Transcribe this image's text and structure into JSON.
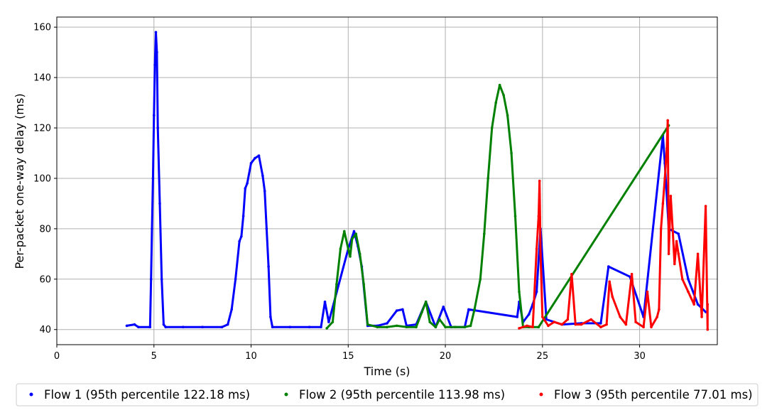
{
  "chart_data": {
    "type": "scatter",
    "xlabel": "Time (s)",
    "ylabel": "Per-packet one-way delay (ms)",
    "xlim": [
      0,
      34
    ],
    "ylim": [
      34,
      164
    ],
    "xticks": [
      0,
      5,
      10,
      15,
      20,
      25,
      30
    ],
    "yticks": [
      40,
      60,
      80,
      100,
      120,
      140,
      160
    ],
    "grid": true,
    "legend_position": "bottom",
    "series": [
      {
        "name": "Flow 1 (95th percentile 122.18 ms)",
        "color": "#0000ff",
        "points": [
          [
            3.6,
            41.5
          ],
          [
            4.0,
            42.0
          ],
          [
            4.2,
            41.0
          ],
          [
            4.8,
            41.0
          ],
          [
            4.85,
            60
          ],
          [
            4.9,
            80
          ],
          [
            4.95,
            100
          ],
          [
            5.0,
            125
          ],
          [
            5.05,
            145
          ],
          [
            5.1,
            158
          ],
          [
            5.15,
            150
          ],
          [
            5.2,
            120
          ],
          [
            5.3,
            90
          ],
          [
            5.4,
            60
          ],
          [
            5.5,
            42
          ],
          [
            5.6,
            41
          ],
          [
            6.5,
            41
          ],
          [
            7.5,
            41
          ],
          [
            8.5,
            41
          ],
          [
            8.8,
            42
          ],
          [
            9.0,
            48
          ],
          [
            9.2,
            60
          ],
          [
            9.4,
            75
          ],
          [
            9.5,
            77
          ],
          [
            9.6,
            85
          ],
          [
            9.7,
            96
          ],
          [
            9.8,
            98
          ],
          [
            10.0,
            106
          ],
          [
            10.2,
            108
          ],
          [
            10.4,
            109
          ],
          [
            10.6,
            101
          ],
          [
            10.7,
            95
          ],
          [
            10.8,
            80
          ],
          [
            10.9,
            65
          ],
          [
            11.0,
            45
          ],
          [
            11.1,
            41
          ],
          [
            12.0,
            41
          ],
          [
            13.0,
            41
          ],
          [
            13.6,
            41
          ],
          [
            13.8,
            51
          ],
          [
            14.0,
            43
          ],
          [
            15.0,
            72
          ],
          [
            15.3,
            79
          ],
          [
            15.5,
            73
          ],
          [
            15.7,
            65
          ],
          [
            16.0,
            41.5
          ],
          [
            16.5,
            41.5
          ],
          [
            17.0,
            42.5
          ],
          [
            17.5,
            47.5
          ],
          [
            17.8,
            48
          ],
          [
            18.0,
            41.5
          ],
          [
            18.5,
            42
          ],
          [
            19.0,
            51
          ],
          [
            19.5,
            41
          ],
          [
            19.9,
            49
          ],
          [
            20.3,
            41
          ],
          [
            21.0,
            41
          ],
          [
            21.2,
            48
          ],
          [
            23.7,
            45
          ],
          [
            23.8,
            51
          ],
          [
            24.0,
            43
          ],
          [
            24.3,
            46
          ],
          [
            24.5,
            50
          ],
          [
            24.7,
            55
          ],
          [
            24.9,
            80
          ],
          [
            25.2,
            44
          ],
          [
            26.0,
            42
          ],
          [
            27.0,
            42.5
          ],
          [
            28.0,
            42.5
          ],
          [
            28.4,
            65
          ],
          [
            29.5,
            61
          ],
          [
            30.2,
            45
          ],
          [
            31.2,
            117
          ],
          [
            31.3,
            106
          ],
          [
            31.5,
            80
          ],
          [
            32.0,
            78
          ],
          [
            32.5,
            60
          ],
          [
            33.0,
            50
          ],
          [
            33.4,
            47
          ]
        ]
      },
      {
        "name": "Flow 2 (95th percentile 113.98 ms)",
        "color": "#008000",
        "points": [
          [
            13.9,
            40.5
          ],
          [
            14.2,
            43
          ],
          [
            14.4,
            58
          ],
          [
            14.6,
            72
          ],
          [
            14.8,
            79
          ],
          [
            15.0,
            72
          ],
          [
            15.1,
            69
          ],
          [
            15.2,
            76
          ],
          [
            15.4,
            78
          ],
          [
            15.6,
            70
          ],
          [
            15.8,
            58
          ],
          [
            16.0,
            42
          ],
          [
            16.5,
            41
          ],
          [
            17.0,
            41
          ],
          [
            17.5,
            41.5
          ],
          [
            18.0,
            41
          ],
          [
            18.5,
            41
          ],
          [
            18.8,
            47
          ],
          [
            19.0,
            51
          ],
          [
            19.2,
            43
          ],
          [
            19.5,
            41
          ],
          [
            19.7,
            44
          ],
          [
            20.0,
            41
          ],
          [
            20.5,
            41
          ],
          [
            21.0,
            41
          ],
          [
            21.3,
            41.5
          ],
          [
            21.5,
            48
          ],
          [
            21.8,
            60
          ],
          [
            22.0,
            78
          ],
          [
            22.2,
            100
          ],
          [
            22.4,
            120
          ],
          [
            22.6,
            130
          ],
          [
            22.8,
            137
          ],
          [
            23.0,
            133
          ],
          [
            23.2,
            125
          ],
          [
            23.4,
            110
          ],
          [
            23.6,
            85
          ],
          [
            23.8,
            55
          ],
          [
            24.0,
            41
          ],
          [
            24.3,
            41
          ],
          [
            24.8,
            41
          ],
          [
            31.5,
            121
          ]
        ]
      },
      {
        "name": "Flow 3 (95th percentile 77.01 ms)",
        "color": "#ff0000",
        "points": [
          [
            23.8,
            40.5
          ],
          [
            24.2,
            41.5
          ],
          [
            24.5,
            41
          ],
          [
            24.7,
            72
          ],
          [
            24.8,
            85
          ],
          [
            24.85,
            99
          ],
          [
            24.9,
            70
          ],
          [
            25.0,
            45
          ],
          [
            25.3,
            41.5
          ],
          [
            25.6,
            43
          ],
          [
            26.0,
            42
          ],
          [
            26.3,
            44
          ],
          [
            26.5,
            62
          ],
          [
            26.7,
            42
          ],
          [
            27.0,
            42
          ],
          [
            27.5,
            44
          ],
          [
            28.0,
            41
          ],
          [
            28.3,
            42
          ],
          [
            28.45,
            59
          ],
          [
            28.6,
            53
          ],
          [
            29.0,
            45
          ],
          [
            29.3,
            42
          ],
          [
            29.6,
            62
          ],
          [
            29.8,
            43
          ],
          [
            30.2,
            41
          ],
          [
            30.4,
            55
          ],
          [
            30.6,
            41
          ],
          [
            30.9,
            45
          ],
          [
            31.0,
            48
          ],
          [
            31.1,
            80
          ],
          [
            31.2,
            90
          ],
          [
            31.3,
            100
          ],
          [
            31.4,
            112
          ],
          [
            31.45,
            123
          ],
          [
            31.5,
            70
          ],
          [
            31.6,
            93
          ],
          [
            31.7,
            80
          ],
          [
            31.8,
            66
          ],
          [
            31.9,
            75
          ],
          [
            32.0,
            70
          ],
          [
            32.2,
            60
          ],
          [
            32.5,
            55
          ],
          [
            32.8,
            50
          ],
          [
            33.0,
            70
          ],
          [
            33.2,
            45
          ],
          [
            33.4,
            89
          ],
          [
            33.5,
            40
          ],
          [
            33.5,
            50
          ]
        ]
      }
    ]
  }
}
